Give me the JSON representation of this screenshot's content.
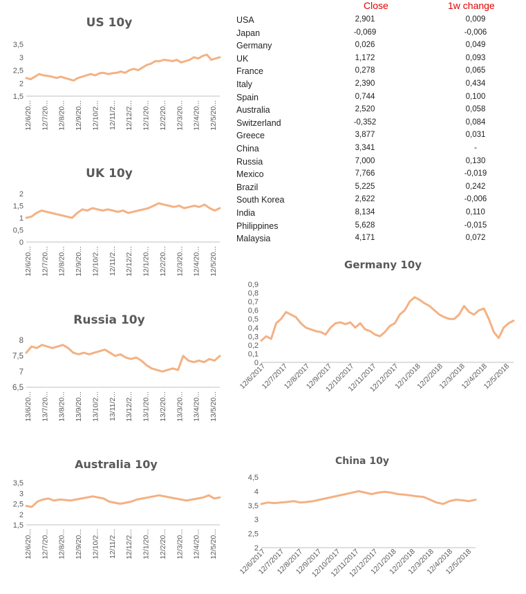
{
  "table": {
    "headers": {
      "close": "Close",
      "change": "1w change"
    },
    "rows": [
      {
        "country": "USA",
        "close": "2,901",
        "change": "0,009"
      },
      {
        "country": "Japan",
        "close": "-0,069",
        "change": "-0,006"
      },
      {
        "country": "Germany",
        "close": "0,026",
        "change": "0,049"
      },
      {
        "country": "UK",
        "close": "1,172",
        "change": "0,093"
      },
      {
        "country": "France",
        "close": "0,278",
        "change": "0,065"
      },
      {
        "country": "Italy",
        "close": "2,390",
        "change": "0,434"
      },
      {
        "country": "Spain",
        "close": "0,744",
        "change": "0,100"
      },
      {
        "country": "Australia",
        "close": "2,520",
        "change": "0,058"
      },
      {
        "country": "Switzerland",
        "close": "-0,352",
        "change": "0,084"
      },
      {
        "country": "Greece",
        "close": "3,877",
        "change": "0,031"
      },
      {
        "country": "China",
        "close": "3,341",
        "change": "-"
      },
      {
        "country": "Russia",
        "close": "7,000",
        "change": "0,130"
      },
      {
        "country": "Mexico",
        "close": "7,766",
        "change": "-0,019"
      },
      {
        "country": "Brazil",
        "close": "5,225",
        "change": "0,242"
      },
      {
        "country": "South Korea",
        "close": "2,622",
        "change": "-0,006"
      },
      {
        "country": "India",
        "close": "8,134",
        "change": "0,110"
      },
      {
        "country": "Philippines",
        "close": "5,628",
        "change": "-0,015"
      },
      {
        "country": "Malaysia",
        "close": "4,171",
        "change": "0,072"
      }
    ]
  },
  "colors": {
    "series": "#f4b183",
    "header": "#e00000",
    "title": "#595959",
    "axis": "#bfbfbf"
  },
  "chart_data": [
    {
      "id": "us",
      "type": "line",
      "title": "US 10y",
      "yticks": [
        "1,5",
        "2",
        "2,5",
        "3",
        "3,5"
      ],
      "ylim": [
        1.5,
        3.5
      ],
      "xticks": [
        "12/6/20...",
        "12/7/20...",
        "12/8/20...",
        "12/9/20...",
        "12/10/2...",
        "12/11/2...",
        "12/12/2...",
        "12/1/20...",
        "12/2/20...",
        "12/3/20...",
        "12/4/20...",
        "12/5/20..."
      ],
      "values": [
        2.2,
        2.15,
        2.25,
        2.35,
        2.3,
        2.28,
        2.25,
        2.2,
        2.25,
        2.2,
        2.15,
        2.1,
        2.2,
        2.25,
        2.3,
        2.35,
        2.3,
        2.38,
        2.4,
        2.35,
        2.38,
        2.4,
        2.45,
        2.4,
        2.5,
        2.55,
        2.5,
        2.6,
        2.7,
        2.75,
        2.85,
        2.85,
        2.9,
        2.88,
        2.85,
        2.9,
        2.8,
        2.85,
        2.9,
        3.0,
        2.95,
        3.05,
        3.1,
        2.9,
        2.95,
        3.0
      ]
    },
    {
      "id": "uk",
      "type": "line",
      "title": "UK 10y",
      "yticks": [
        "0",
        "0,5",
        "1",
        "1,5",
        "2"
      ],
      "ylim": [
        0,
        2
      ],
      "xticks": [
        "12/6/20...",
        "12/7/20...",
        "12/8/20...",
        "12/9/20...",
        "12/10/2...",
        "12/11/2...",
        "12/12/2...",
        "12/1/20...",
        "12/2/20...",
        "12/3/20...",
        "12/4/20...",
        "12/5/20..."
      ],
      "values": [
        1.0,
        1.05,
        1.2,
        1.3,
        1.25,
        1.2,
        1.15,
        1.1,
        1.05,
        1.0,
        1.2,
        1.35,
        1.3,
        1.4,
        1.35,
        1.3,
        1.35,
        1.3,
        1.25,
        1.3,
        1.2,
        1.25,
        1.3,
        1.35,
        1.4,
        1.5,
        1.6,
        1.55,
        1.5,
        1.45,
        1.5,
        1.4,
        1.45,
        1.5,
        1.45,
        1.55,
        1.4,
        1.3,
        1.4
      ]
    },
    {
      "id": "russia",
      "type": "line",
      "title": "Russia 10y",
      "yticks": [
        "6,5",
        "7",
        "7,5",
        "8"
      ],
      "ylim": [
        6.5,
        8
      ],
      "xticks": [
        "13/6/20...",
        "13/7/20...",
        "13/8/20...",
        "13/9/20...",
        "13/10/2...",
        "13/11/2...",
        "13/12/2...",
        "13/1/20...",
        "13/2/20...",
        "13/3/20...",
        "13/4/20...",
        "13/5/20..."
      ],
      "values": [
        7.6,
        7.8,
        7.75,
        7.85,
        7.8,
        7.75,
        7.8,
        7.85,
        7.75,
        7.6,
        7.55,
        7.6,
        7.55,
        7.6,
        7.65,
        7.7,
        7.6,
        7.5,
        7.55,
        7.45,
        7.4,
        7.45,
        7.35,
        7.2,
        7.1,
        7.05,
        7.0,
        7.05,
        7.1,
        7.05,
        7.5,
        7.35,
        7.3,
        7.35,
        7.3,
        7.4,
        7.35,
        7.5
      ]
    },
    {
      "id": "australia",
      "type": "line",
      "title": "Australia 10y",
      "yticks": [
        "1,5",
        "2",
        "2,5",
        "3",
        "3,5"
      ],
      "ylim": [
        1.5,
        3.5
      ],
      "xticks": [
        "12/6/20...",
        "12/7/20...",
        "12/8/20...",
        "12/9/20...",
        "12/10/2...",
        "12/11/2...",
        "12/12/2...",
        "12/1/20...",
        "12/2/20...",
        "12/3/20...",
        "12/4/20...",
        "12/5/20..."
      ],
      "values": [
        2.4,
        2.35,
        2.6,
        2.7,
        2.75,
        2.65,
        2.7,
        2.68,
        2.65,
        2.7,
        2.75,
        2.8,
        2.85,
        2.8,
        2.75,
        2.6,
        2.55,
        2.5,
        2.55,
        2.6,
        2.7,
        2.75,
        2.8,
        2.85,
        2.9,
        2.85,
        2.8,
        2.75,
        2.7,
        2.65,
        2.7,
        2.75,
        2.8,
        2.9,
        2.75,
        2.8
      ]
    },
    {
      "id": "germany",
      "type": "line",
      "title": "Germany 10y",
      "yticks": [
        "0",
        "0,1",
        "0,2",
        "0,3",
        "0,4",
        "0,5",
        "0,6",
        "0,7",
        "0,8",
        "0,9"
      ],
      "ylim": [
        0,
        0.9
      ],
      "xticks": [
        "12/6/2017",
        "12/7/2017",
        "12/8/2017",
        "12/9/2017",
        "12/10/2017",
        "12/11/2017",
        "12/12/2017",
        "12/1/2018",
        "12/2/2018",
        "12/3/2018",
        "12/4/2018",
        "12/5/2018"
      ],
      "values": [
        0.25,
        0.3,
        0.27,
        0.45,
        0.5,
        0.58,
        0.55,
        0.52,
        0.45,
        0.4,
        0.38,
        0.36,
        0.35,
        0.32,
        0.4,
        0.45,
        0.46,
        0.44,
        0.46,
        0.4,
        0.45,
        0.38,
        0.36,
        0.32,
        0.3,
        0.35,
        0.42,
        0.45,
        0.55,
        0.6,
        0.7,
        0.75,
        0.72,
        0.68,
        0.65,
        0.6,
        0.55,
        0.52,
        0.5,
        0.5,
        0.55,
        0.65,
        0.58,
        0.55,
        0.6,
        0.62,
        0.5,
        0.35,
        0.28,
        0.4,
        0.45,
        0.48
      ]
    },
    {
      "id": "china",
      "type": "line",
      "title": "China 10y",
      "yticks": [
        "2",
        "2,5",
        "3",
        "3,5",
        "4",
        "4,5"
      ],
      "ylim": [
        2,
        4.5
      ],
      "xticks": [
        "12/6/2017",
        "12/7/2017",
        "12/8/2017",
        "12/9/2017",
        "12/10/2017",
        "12/11/2017",
        "12/12/2017",
        "12/1/2018",
        "12/2/2018",
        "12/3/2018",
        "12/4/2018",
        "12/5/2018"
      ],
      "values": [
        3.55,
        3.6,
        3.58,
        3.6,
        3.62,
        3.65,
        3.6,
        3.62,
        3.65,
        3.7,
        3.75,
        3.8,
        3.85,
        3.9,
        3.95,
        4.0,
        3.95,
        3.9,
        3.95,
        3.98,
        3.95,
        3.9,
        3.88,
        3.85,
        3.82,
        3.8,
        3.7,
        3.6,
        3.55,
        3.65,
        3.7,
        3.68,
        3.65,
        3.7
      ]
    }
  ]
}
